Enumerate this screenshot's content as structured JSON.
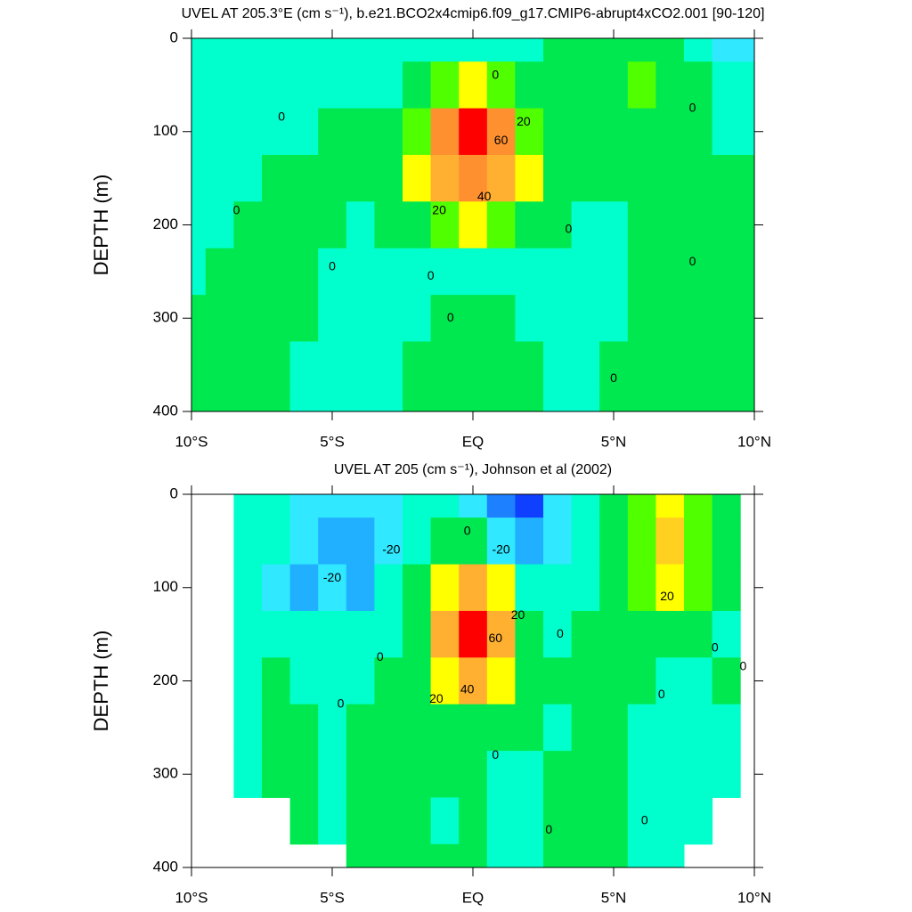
{
  "chart_data": [
    {
      "type": "contour",
      "title": "UVEL AT 205.3°E (cm s⁻¹), b.e21.BCO2x4cmip6.f09_g17.CMIP6-abrupt4xCO2.001 [90-120]",
      "ylabel": "DEPTH (m)",
      "x": [
        -10,
        -9,
        -8,
        -7,
        -6,
        -5,
        -4,
        -3,
        -2,
        -1,
        0,
        1,
        2,
        3,
        4,
        5,
        6,
        7,
        8,
        9,
        10
      ],
      "depth": [
        0,
        50,
        100,
        150,
        200,
        250,
        300,
        350,
        400
      ],
      "z": [
        [
          -3,
          -3,
          -3,
          -3,
          -3,
          -3,
          -3,
          -3,
          -3,
          -3,
          -2,
          -3,
          -3,
          3,
          3,
          3,
          3,
          3,
          -3,
          -12,
          -12
        ],
        [
          -4,
          -4,
          -4,
          -4,
          -4,
          -4,
          -4,
          -2,
          3,
          15,
          25,
          15,
          3,
          2,
          4,
          8,
          12,
          5,
          2,
          -8,
          -10
        ],
        [
          -4,
          -4,
          -4,
          -4,
          -1,
          2,
          4,
          6,
          15,
          50,
          85,
          50,
          15,
          4,
          3,
          3,
          3,
          3,
          2,
          -2,
          -5
        ],
        [
          -4,
          -3,
          -1,
          1,
          3,
          4,
          5,
          8,
          22,
          45,
          55,
          45,
          20,
          5,
          3,
          2,
          2,
          2,
          2,
          1,
          1
        ],
        [
          -3,
          -1,
          1,
          3,
          3,
          2,
          -1,
          1,
          6,
          15,
          22,
          15,
          5,
          1,
          -1,
          -1,
          1,
          2,
          2,
          2,
          2
        ],
        [
          -2,
          1,
          3,
          3,
          1,
          -2,
          -3,
          -3,
          -1,
          -2,
          -3,
          -3,
          -2,
          -2,
          -1,
          -1,
          1,
          2,
          2,
          2,
          2
        ],
        [
          0.5,
          3,
          3,
          2,
          1,
          -2,
          -3,
          -2,
          -1,
          1,
          2,
          1,
          -1,
          -2,
          -2,
          -1,
          1,
          2,
          2,
          2,
          2
        ],
        [
          2,
          3,
          3,
          2,
          -1,
          -2,
          -3,
          -2,
          1,
          3,
          4,
          3,
          2,
          -1,
          -2,
          1,
          2,
          2,
          2,
          2,
          2
        ],
        [
          2,
          3,
          3,
          2,
          -1,
          -2,
          -3,
          -2,
          1,
          3,
          4,
          3,
          2,
          -1,
          -2,
          1,
          2,
          2,
          2,
          2,
          2
        ]
      ],
      "levels": [
        -40,
        -30,
        -20,
        -10,
        0,
        10,
        20,
        30,
        40,
        50,
        60,
        70,
        80
      ],
      "colors": [
        "#1040ff",
        "#1c80ff",
        "#20b0ff",
        "#30e8ff",
        "#00ffcc",
        "#00e850",
        "#50ff00",
        "#ffff00",
        "#ffd020",
        "#ffb030",
        "#ff9030",
        "#ff7030",
        "#ff4020",
        "#ff0000"
      ],
      "xlim": [
        -10,
        10
      ],
      "ylim": [
        0,
        400
      ],
      "reverse_y": true,
      "xticks": [
        {
          "value": -10,
          "label": "10°S"
        },
        {
          "value": -5,
          "label": "5°S"
        },
        {
          "value": 0,
          "label": "EQ"
        },
        {
          "value": 5,
          "label": "5°N"
        },
        {
          "value": 10,
          "label": "10°N"
        }
      ],
      "yticks": [
        0,
        100,
        200,
        300,
        400
      ],
      "contour_labels": [
        {
          "value": 0,
          "x": 0.8,
          "depth": 40
        },
        {
          "value": 0,
          "x": -6.8,
          "depth": 85
        },
        {
          "value": 20,
          "x": 1.8,
          "depth": 90
        },
        {
          "value": 60,
          "x": 1.0,
          "depth": 110
        },
        {
          "value": 40,
          "x": 0.4,
          "depth": 170
        },
        {
          "value": 20,
          "x": -1.2,
          "depth": 185
        },
        {
          "value": 0,
          "x": -8.4,
          "depth": 185
        },
        {
          "value": 0,
          "x": 3.4,
          "depth": 205
        },
        {
          "value": 0,
          "x": 7.8,
          "depth": 75
        },
        {
          "value": 0,
          "x": 7.8,
          "depth": 240
        },
        {
          "value": 0,
          "x": -5,
          "depth": 245
        },
        {
          "value": 0,
          "x": -1.5,
          "depth": 255
        },
        {
          "value": 0,
          "x": -0.8,
          "depth": 300
        },
        {
          "value": 0,
          "x": 5,
          "depth": 365
        }
      ]
    },
    {
      "type": "contour",
      "title": "UVEL AT 205 (cm s⁻¹), Johnson et al (2002)",
      "ylabel": "DEPTH (m)",
      "x": [
        -10,
        -9,
        -8,
        -7,
        -6,
        -5,
        -4,
        -3,
        -2,
        -1,
        0,
        1,
        2,
        3,
        4,
        5,
        6,
        7,
        8,
        9,
        10
      ],
      "depth": [
        0,
        50,
        100,
        150,
        200,
        250,
        300,
        350,
        400
      ],
      "z": [
        [
          null,
          null,
          -5,
          -8,
          -12,
          -12,
          -12,
          -12,
          -8,
          -5,
          -15,
          -35,
          -45,
          -20,
          -5,
          5,
          15,
          25,
          12,
          5,
          null
        ],
        [
          null,
          null,
          -5,
          -10,
          -15,
          -22,
          -22,
          -15,
          -5,
          5,
          2,
          -15,
          -25,
          -15,
          -5,
          5,
          15,
          30,
          12,
          5,
          null
        ],
        [
          null,
          null,
          -5,
          -12,
          -22,
          -15,
          -22,
          -8,
          3,
          25,
          45,
          20,
          -5,
          -8,
          -3,
          3,
          15,
          25,
          10,
          5,
          null
        ],
        [
          null,
          null,
          -5,
          -5,
          -8,
          -5,
          -8,
          -2,
          3,
          45,
          80,
          40,
          3,
          -3,
          3,
          5,
          8,
          5,
          3,
          -1,
          null
        ],
        [
          null,
          null,
          -3,
          1,
          -3,
          -3,
          -3,
          3,
          5,
          25,
          40,
          20,
          3,
          1,
          5,
          1,
          3,
          -1,
          -3,
          1,
          null
        ],
        [
          null,
          null,
          -3,
          1,
          3,
          -3,
          1,
          3,
          3,
          5,
          3,
          3,
          1,
          -3,
          5,
          1,
          -3,
          -3,
          -3,
          -3,
          null
        ],
        [
          null,
          null,
          -3,
          3,
          3,
          -3,
          3,
          3,
          1,
          1,
          3,
          -3,
          -3,
          1,
          5,
          1,
          -3,
          -3,
          -3,
          -3,
          null
        ],
        [
          null,
          null,
          null,
          null,
          3,
          -3,
          3,
          3,
          3,
          -3,
          3,
          -5,
          -3,
          1,
          5,
          1,
          -3,
          -3,
          -3,
          null,
          null
        ],
        [
          null,
          null,
          null,
          null,
          null,
          null,
          3,
          3,
          3,
          3,
          3,
          -3,
          -3,
          1,
          3,
          1,
          -3,
          -3,
          null,
          null,
          null
        ]
      ],
      "levels": [
        -40,
        -30,
        -20,
        -10,
        0,
        10,
        20,
        30,
        40,
        50,
        60,
        70,
        80
      ],
      "colors": [
        "#1040ff",
        "#1c80ff",
        "#20b0ff",
        "#30e8ff",
        "#00ffcc",
        "#00e850",
        "#50ff00",
        "#ffff00",
        "#ffd020",
        "#ffb030",
        "#ff9030",
        "#ff7030",
        "#ff4020",
        "#ff0000"
      ],
      "xlim": [
        -10,
        10
      ],
      "ylim": [
        0,
        400
      ],
      "reverse_y": true,
      "xticks": [
        {
          "value": -10,
          "label": "10°S"
        },
        {
          "value": -5,
          "label": "5°S"
        },
        {
          "value": 0,
          "label": "EQ"
        },
        {
          "value": 5,
          "label": "5°N"
        },
        {
          "value": 10,
          "label": "10°N"
        }
      ],
      "yticks": [
        0,
        100,
        200,
        300,
        400
      ],
      "contour_labels": [
        {
          "value": -20,
          "x": -5,
          "depth": 90
        },
        {
          "value": -20,
          "x": -2.9,
          "depth": 60
        },
        {
          "value": 0,
          "x": -0.2,
          "depth": 40
        },
        {
          "value": -20,
          "x": 1,
          "depth": 60
        },
        {
          "value": 20,
          "x": 1.6,
          "depth": 130
        },
        {
          "value": 60,
          "x": 0.8,
          "depth": 155
        },
        {
          "value": 40,
          "x": -0.2,
          "depth": 210
        },
        {
          "value": 20,
          "x": -1.3,
          "depth": 220
        },
        {
          "value": 0,
          "x": 3.1,
          "depth": 150
        },
        {
          "value": 20,
          "x": 6.9,
          "depth": 110
        },
        {
          "value": 0,
          "x": -3.3,
          "depth": 175
        },
        {
          "value": 0,
          "x": -4.7,
          "depth": 225
        },
        {
          "value": 0,
          "x": 6.7,
          "depth": 215
        },
        {
          "value": 0,
          "x": 8.6,
          "depth": 165
        },
        {
          "value": 0,
          "x": 9.6,
          "depth": 185
        },
        {
          "value": 0,
          "x": 0.8,
          "depth": 280
        },
        {
          "value": 0,
          "x": 2.7,
          "depth": 360
        },
        {
          "value": 0,
          "x": 6.1,
          "depth": 350
        }
      ]
    }
  ]
}
